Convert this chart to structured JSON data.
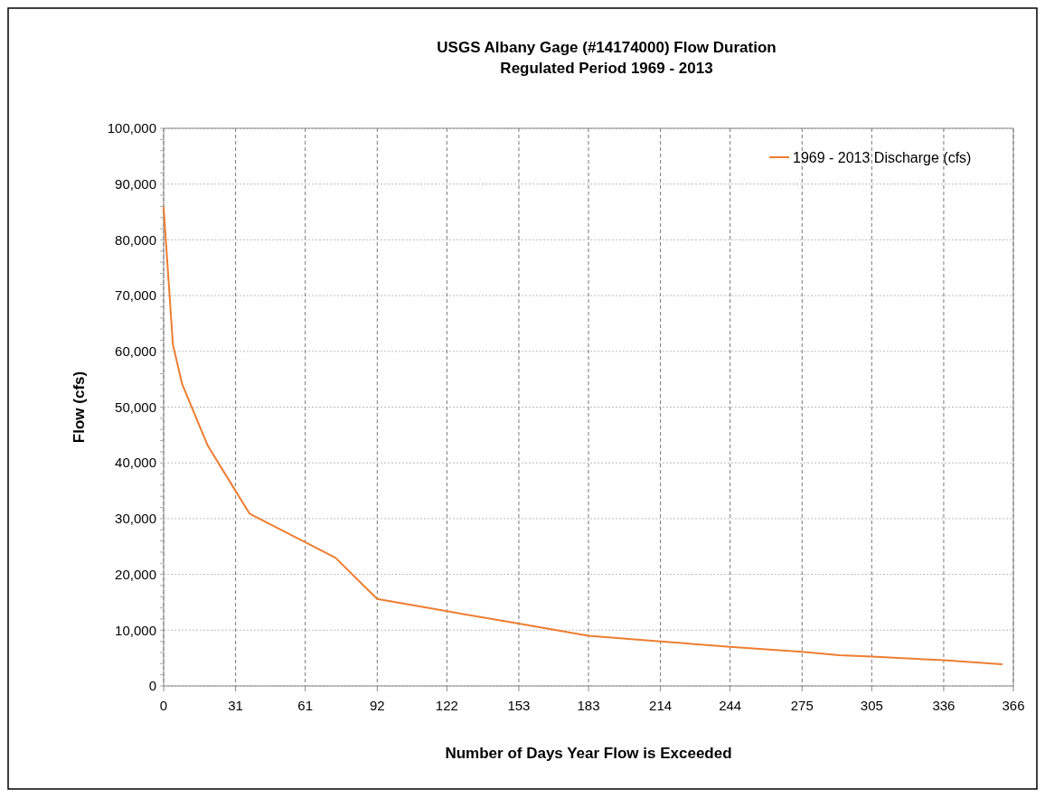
{
  "chart_data": {
    "type": "line",
    "title": "USGS Albany Gage (#14174000) Flow Duration",
    "subtitle": "Regulated Period 1969 - 2013",
    "xlabel": "Number of Days Year Flow is Exceeded",
    "ylabel": "Flow (cfs)",
    "x": [
      0,
      4,
      8,
      19,
      37,
      74,
      92,
      122,
      153,
      183,
      214,
      244,
      275,
      291,
      305,
      336,
      361
    ],
    "series": [
      {
        "name": "1969 - 2013 Discharge (cfs)",
        "color": "#ed7d31",
        "values": [
          85800,
          61200,
          54100,
          43100,
          30900,
          23000,
          15600,
          13400,
          11200,
          9000,
          8000,
          7000,
          6100,
          5500,
          5250,
          4600,
          3900
        ]
      }
    ],
    "xlim": [
      0,
      366
    ],
    "xticks": [
      0,
      31,
      61,
      92,
      122,
      153,
      183,
      214,
      244,
      275,
      305,
      336,
      366
    ],
    "ylim": [
      0,
      100000
    ],
    "yticks": [
      {
        "value": 0,
        "label": "0"
      },
      {
        "value": 10000,
        "label": "10,000"
      },
      {
        "value": 20000,
        "label": "20,000"
      },
      {
        "value": 30000,
        "label": "30,000"
      },
      {
        "value": 40000,
        "label": "40,000"
      },
      {
        "value": 50000,
        "label": "50,000"
      },
      {
        "value": 60000,
        "label": "60,000"
      },
      {
        "value": 70000,
        "label": "70,000"
      },
      {
        "value": 80000,
        "label": "80,000"
      },
      {
        "value": 90000,
        "label": "90,000"
      },
      {
        "value": 100000,
        "label": "100,000"
      }
    ],
    "grid": true,
    "legend": "top right",
    "marker": "none",
    "line_style": "solid"
  }
}
